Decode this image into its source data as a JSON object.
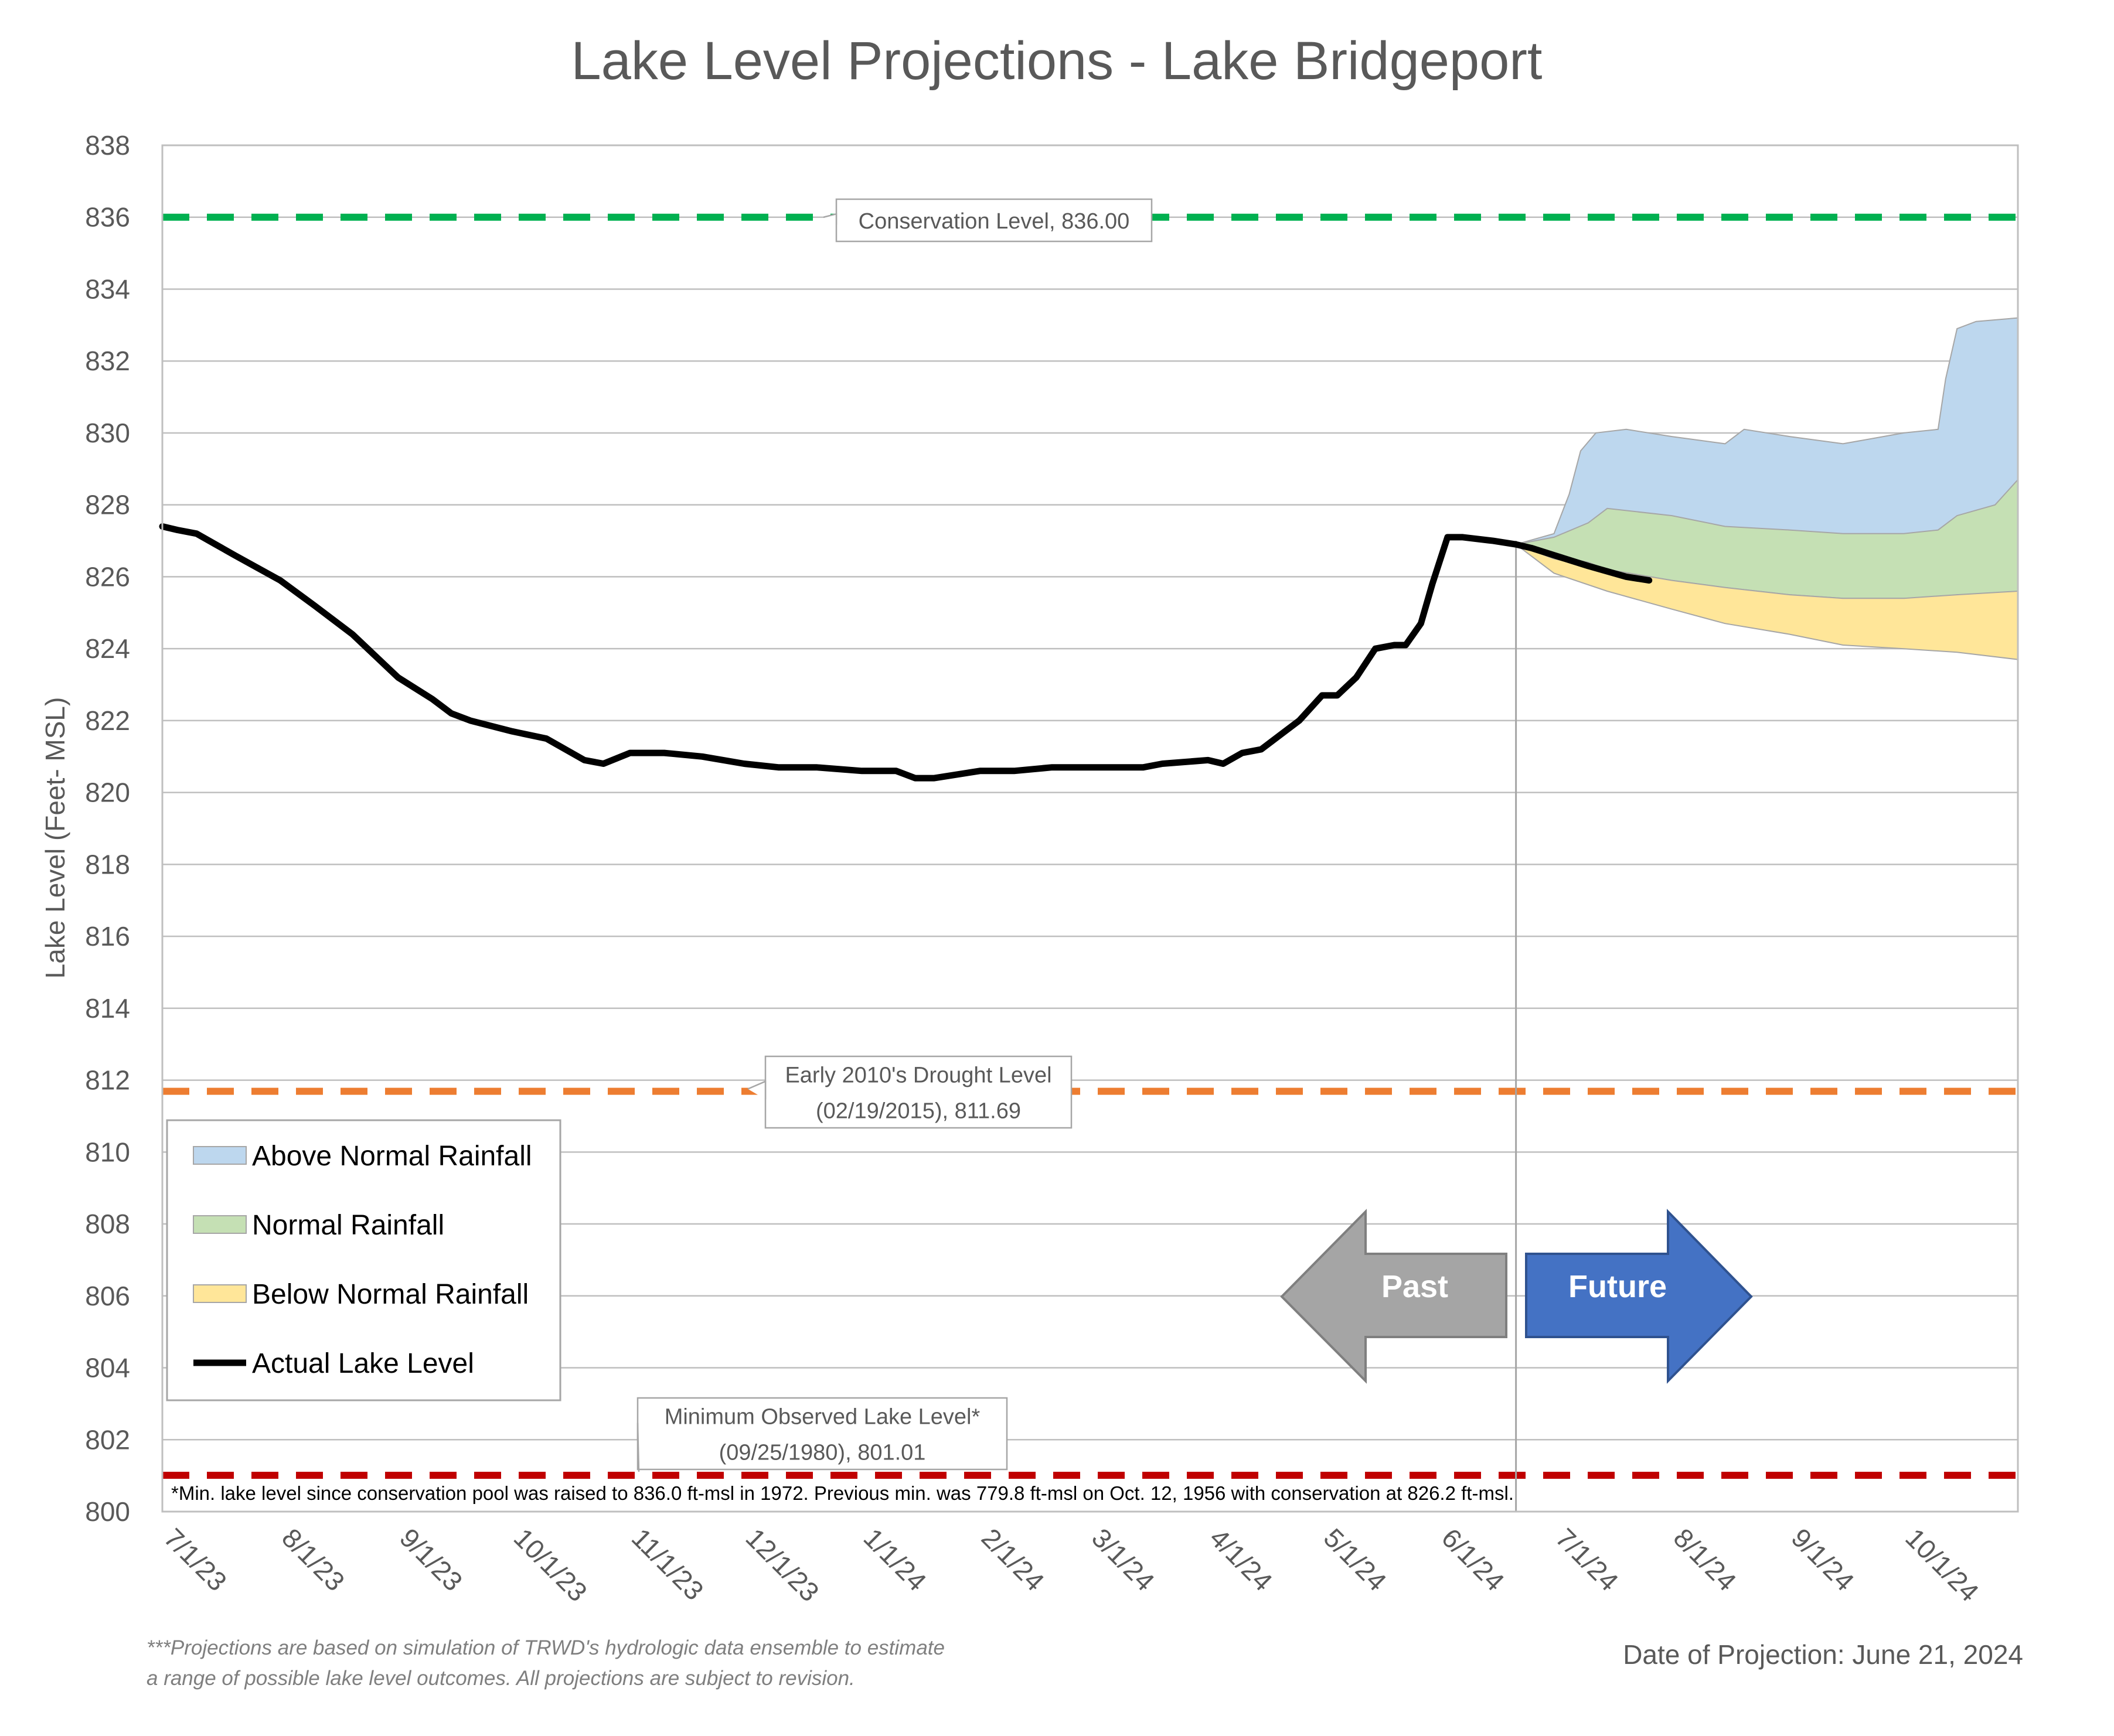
{
  "chart_data": {
    "type": "area",
    "title": "Lake Level Projections - Lake Bridgeport",
    "ylabel": "Lake Level (Feet- MSL)",
    "xlabel": "",
    "ylim": [
      800,
      838
    ],
    "y_ticks": [
      800,
      802,
      804,
      806,
      808,
      810,
      812,
      814,
      816,
      818,
      820,
      822,
      824,
      826,
      828,
      830,
      832,
      834,
      836,
      838
    ],
    "x_tick_labels": [
      "7/1/23",
      "8/1/23",
      "9/1/23",
      "10/1/23",
      "11/1/23",
      "12/1/23",
      "1/1/24",
      "2/1/24",
      "3/1/24",
      "4/1/24",
      "5/1/24",
      "6/1/24",
      "7/1/24",
      "8/1/24",
      "9/1/24",
      "10/1/24"
    ],
    "x_tick_dates": [
      "2023-07-01",
      "2023-08-01",
      "2023-09-01",
      "2023-10-01",
      "2023-11-01",
      "2023-12-01",
      "2024-01-01",
      "2024-02-01",
      "2024-03-01",
      "2024-04-01",
      "2024-05-01",
      "2024-06-01",
      "2024-07-01",
      "2024-08-01",
      "2024-09-01",
      "2024-10-01"
    ],
    "x_range": [
      "2023-07-01",
      "2024-10-31"
    ],
    "grid": "horizontal",
    "legend_position": "bottom-left",
    "projection_date_divider": "2024-06-21",
    "reference_lines": [
      {
        "label": "Conservation Level, 836.00",
        "value": 836.0,
        "color": "#00B050"
      },
      {
        "label_lines": [
          "Early 2010's Drought Level",
          "(02/19/2015), 811.69"
        ],
        "value": 811.69,
        "color": "#ED7D31"
      },
      {
        "label_lines": [
          "Minimum Observed Lake Level*",
          "(09/25/1980), 801.01"
        ],
        "value": 801.01,
        "color": "#C00000"
      }
    ],
    "series": [
      {
        "name": "Above Normal Rainfall",
        "color": "#BDD7EE",
        "band": {
          "x": [
            "2024-06-21",
            "2024-07-01",
            "2024-07-05",
            "2024-07-08",
            "2024-07-12",
            "2024-07-20",
            "2024-08-01",
            "2024-08-15",
            "2024-08-20",
            "2024-09-01",
            "2024-09-15",
            "2024-10-01",
            "2024-10-10",
            "2024-10-12",
            "2024-10-15",
            "2024-10-20",
            "2024-10-31"
          ],
          "upper": [
            826.9,
            827.2,
            828.3,
            829.5,
            830.0,
            830.1,
            829.9,
            829.7,
            830.1,
            829.9,
            829.7,
            830.0,
            830.1,
            831.5,
            832.9,
            833.1,
            833.2
          ],
          "lower": [
            826.9,
            826.9,
            826.8,
            826.7,
            826.6,
            826.5,
            826.4,
            826.3,
            826.2,
            826.1,
            826.0,
            825.9,
            825.8,
            825.8,
            825.8,
            825.7,
            825.7
          ]
        }
      },
      {
        "name": "Normal Rainfall",
        "color": "#C5E0B4",
        "band": {
          "x": [
            "2024-06-21",
            "2024-07-01",
            "2024-07-10",
            "2024-07-15",
            "2024-08-01",
            "2024-08-15",
            "2024-09-01",
            "2024-09-15",
            "2024-10-01",
            "2024-10-10",
            "2024-10-15",
            "2024-10-25",
            "2024-10-31"
          ],
          "upper": [
            826.9,
            827.1,
            827.5,
            827.9,
            827.7,
            827.4,
            827.3,
            827.2,
            827.2,
            827.3,
            827.7,
            828.0,
            828.7
          ],
          "lower": [
            826.9,
            826.6,
            826.4,
            826.2,
            825.9,
            825.7,
            825.5,
            825.4,
            825.4,
            825.4,
            825.5,
            825.5,
            825.6
          ]
        }
      },
      {
        "name": "Below Normal Rainfall",
        "color": "#FFE699",
        "band": {
          "x": [
            "2024-06-21",
            "2024-07-01",
            "2024-07-15",
            "2024-08-01",
            "2024-08-15",
            "2024-09-01",
            "2024-09-15",
            "2024-10-01",
            "2024-10-15",
            "2024-10-31"
          ],
          "upper": [
            826.9,
            826.5,
            826.2,
            825.9,
            825.7,
            825.5,
            825.4,
            825.4,
            825.5,
            825.6
          ],
          "lower": [
            826.9,
            826.1,
            825.6,
            825.1,
            824.7,
            824.4,
            824.1,
            824.0,
            823.9,
            823.7
          ]
        }
      },
      {
        "name": "Actual Lake Level",
        "color": "#000000",
        "x": [
          "2023-07-01",
          "2023-07-05",
          "2023-07-10",
          "2023-07-15",
          "2023-07-20",
          "2023-08-01",
          "2023-08-10",
          "2023-08-20",
          "2023-09-01",
          "2023-09-10",
          "2023-09-15",
          "2023-09-20",
          "2023-10-01",
          "2023-10-10",
          "2023-10-15",
          "2023-10-20",
          "2023-10-25",
          "2023-11-01",
          "2023-11-10",
          "2023-11-20",
          "2023-12-01",
          "2023-12-10",
          "2023-12-20",
          "2024-01-01",
          "2024-01-10",
          "2024-01-15",
          "2024-01-20",
          "2024-02-01",
          "2024-02-10",
          "2024-02-20",
          "2024-03-01",
          "2024-03-10",
          "2024-03-15",
          "2024-03-20",
          "2024-04-01",
          "2024-04-05",
          "2024-04-10",
          "2024-04-15",
          "2024-04-20",
          "2024-04-25",
          "2024-05-01",
          "2024-05-05",
          "2024-05-10",
          "2024-05-15",
          "2024-05-20",
          "2024-05-23",
          "2024-05-27",
          "2024-05-30",
          "2024-06-03",
          "2024-06-07",
          "2024-06-15",
          "2024-06-21",
          "2024-06-25",
          "2024-07-01",
          "2024-07-10",
          "2024-07-20",
          "2024-07-26"
        ],
        "values": [
          827.4,
          827.3,
          827.2,
          826.9,
          826.6,
          825.9,
          825.2,
          824.4,
          823.2,
          822.6,
          822.2,
          822.0,
          821.7,
          821.5,
          821.2,
          820.9,
          820.8,
          821.1,
          821.1,
          821.0,
          820.8,
          820.7,
          820.7,
          820.6,
          820.6,
          820.4,
          820.4,
          820.6,
          820.6,
          820.7,
          820.7,
          820.7,
          820.7,
          820.8,
          820.9,
          820.8,
          821.1,
          821.2,
          821.6,
          822.0,
          822.7,
          822.7,
          823.2,
          824.0,
          824.1,
          824.1,
          824.7,
          825.8,
          827.1,
          827.1,
          827.0,
          826.9,
          826.8,
          826.6,
          826.3,
          826.0,
          825.9
        ]
      }
    ],
    "annotations": {
      "arrow_past": "Past",
      "arrow_future": "Future",
      "note": "*Min. lake level since conservation pool was raised to 836.0 ft-msl in 1972.  Previous min. was 779.8 ft-msl on Oct. 12, 1956 with conservation at 826.2 ft-msl."
    }
  },
  "footer": {
    "disclaimer_lines": [
      "***Projections are based on simulation of TRWD's hydrologic data ensemble to estimate",
      "a range of possible lake level outcomes.  All projections are subject to revision."
    ],
    "projection_date": "Date of Projection: June 21, 2024"
  }
}
